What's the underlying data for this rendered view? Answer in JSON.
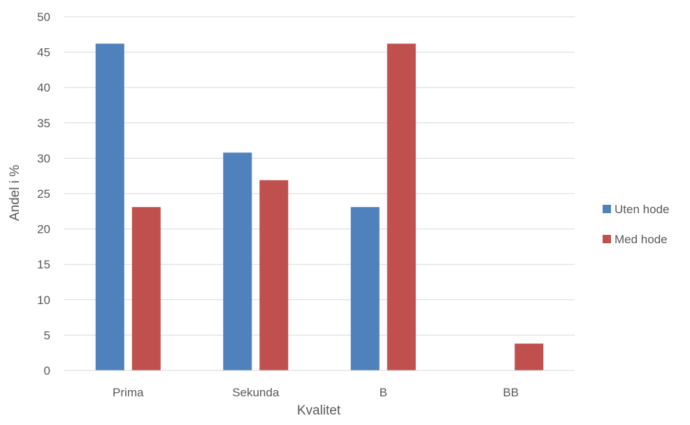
{
  "chart_data": {
    "type": "bar",
    "title": "",
    "xlabel": "Kvalitet",
    "ylabel": "Andel i %",
    "categories": [
      "Prima",
      "Sekunda",
      "B",
      "BB"
    ],
    "ylim": [
      0,
      50
    ],
    "yticks": [
      0,
      5,
      10,
      15,
      20,
      25,
      30,
      35,
      40,
      45,
      50
    ],
    "grid": true,
    "legend_position": "right",
    "series": [
      {
        "name": "Uten hode",
        "color": "#4f81bd",
        "values": [
          46.2,
          30.8,
          23.1,
          0
        ]
      },
      {
        "name": "Med hode",
        "color": "#c0504d",
        "values": [
          23.1,
          26.9,
          46.2,
          3.8
        ]
      }
    ]
  }
}
